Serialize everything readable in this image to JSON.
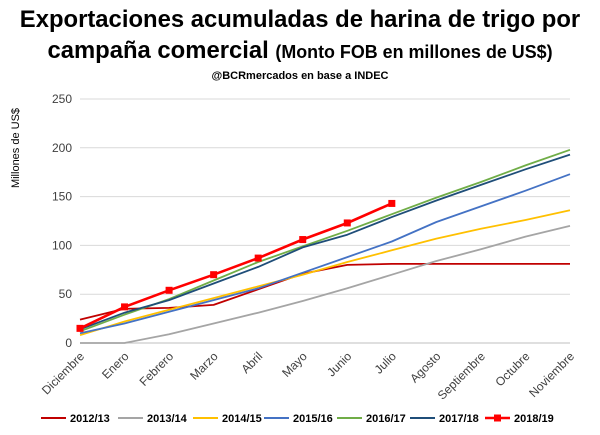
{
  "chart_data": {
    "type": "line",
    "title_line1": "Exportaciones acumuladas de harina de trigo por",
    "title_line2": "campaña comercial",
    "title_sub": "(Monto FOB en millones de US$)",
    "source": "@BCRmercados en base a INDEC",
    "ylabel": "Millones de US$",
    "xlabel": "",
    "ylim": [
      0,
      250
    ],
    "yticks": [
      0,
      50,
      100,
      150,
      200,
      250
    ],
    "grid": true,
    "legend_position": "bottom",
    "categories": [
      "Diciembre",
      "Enero",
      "Febrero",
      "Marzo",
      "Abril",
      "Mayo",
      "Junio",
      "Julio",
      "Agosto",
      "Septiembre",
      "Octubre",
      "Noviembre"
    ],
    "series": [
      {
        "name": "2012/13",
        "color": "#C00000",
        "marker": false,
        "values": [
          24,
          35,
          36,
          39,
          55,
          71,
          80,
          81,
          81,
          81,
          81,
          81
        ]
      },
      {
        "name": "2013/14",
        "color": "#A5A5A5",
        "marker": false,
        "values": [
          0,
          0,
          9,
          20,
          31,
          43,
          56,
          70,
          84,
          96,
          109,
          120
        ]
      },
      {
        "name": "2014/15",
        "color": "#FFC000",
        "marker": false,
        "values": [
          8,
          22,
          34,
          46,
          58,
          70,
          83,
          95,
          107,
          117,
          126,
          136
        ]
      },
      {
        "name": "2015/16",
        "color": "#4472C4",
        "marker": false,
        "values": [
          10,
          20,
          32,
          44,
          56,
          72,
          88,
          104,
          124,
          140,
          156,
          173
        ]
      },
      {
        "name": "2016/17",
        "color": "#70AD47",
        "marker": false,
        "values": [
          12,
          29,
          45,
          64,
          83,
          99,
          115,
          132,
          149,
          165,
          182,
          198
        ]
      },
      {
        "name": "2017/18",
        "color": "#1F4E79",
        "marker": false,
        "values": [
          14,
          31,
          44,
          61,
          78,
          98,
          111,
          129,
          146,
          162,
          178,
          193
        ]
      },
      {
        "name": "2018/19",
        "color": "#FF0000",
        "marker": true,
        "values": [
          15,
          37,
          54,
          70,
          87,
          106,
          123,
          143,
          null,
          null,
          null,
          null
        ]
      }
    ]
  }
}
